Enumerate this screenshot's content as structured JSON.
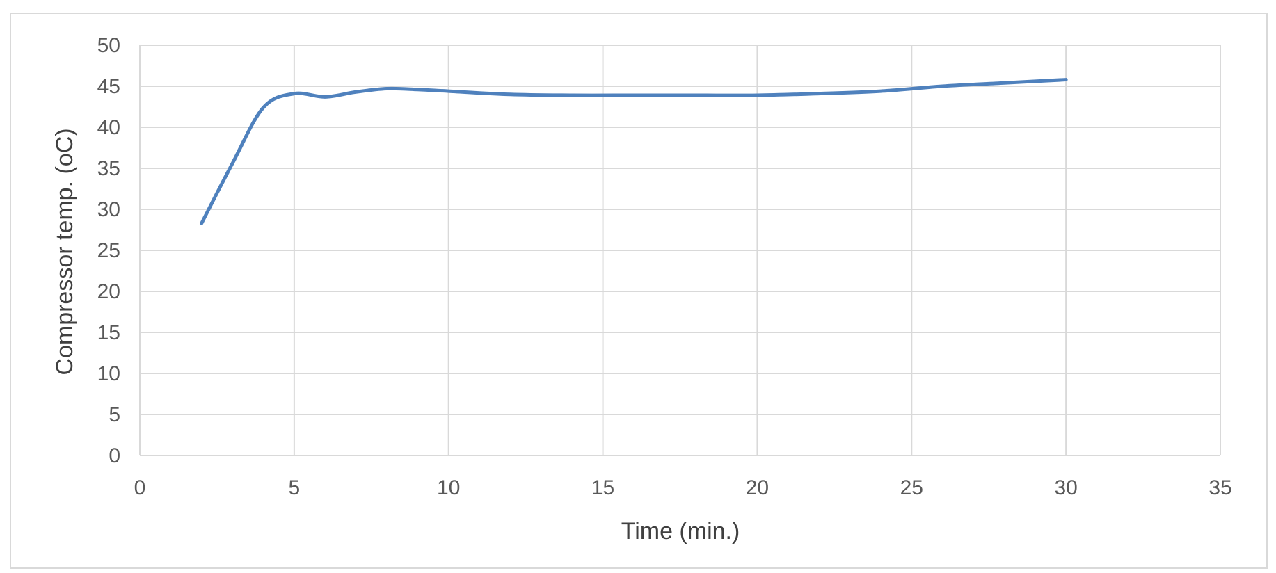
{
  "chart_data": {
    "type": "line",
    "title": "",
    "xlabel": "Time (min.)",
    "ylabel": "Compressor temp. (oC)",
    "xlim": [
      0,
      35
    ],
    "ylim": [
      0,
      50
    ],
    "x_ticks": [
      0,
      5,
      10,
      15,
      20,
      25,
      30,
      35
    ],
    "y_ticks": [
      0,
      5,
      10,
      15,
      20,
      25,
      30,
      35,
      40,
      45,
      50
    ],
    "grid": true,
    "legend": "none",
    "series_color": "#4f81bd",
    "series": [
      {
        "x": [
          2,
          3,
          4,
          5,
          6,
          7,
          8,
          9,
          10,
          12,
          14,
          16,
          18,
          20,
          22,
          24,
          26,
          28,
          30
        ],
        "y": [
          28.3,
          35.6,
          42.4,
          44.1,
          43.7,
          44.3,
          44.7,
          44.6,
          44.4,
          44.0,
          43.9,
          43.9,
          43.9,
          43.9,
          44.1,
          44.4,
          45.0,
          45.4,
          45.8
        ]
      }
    ]
  }
}
